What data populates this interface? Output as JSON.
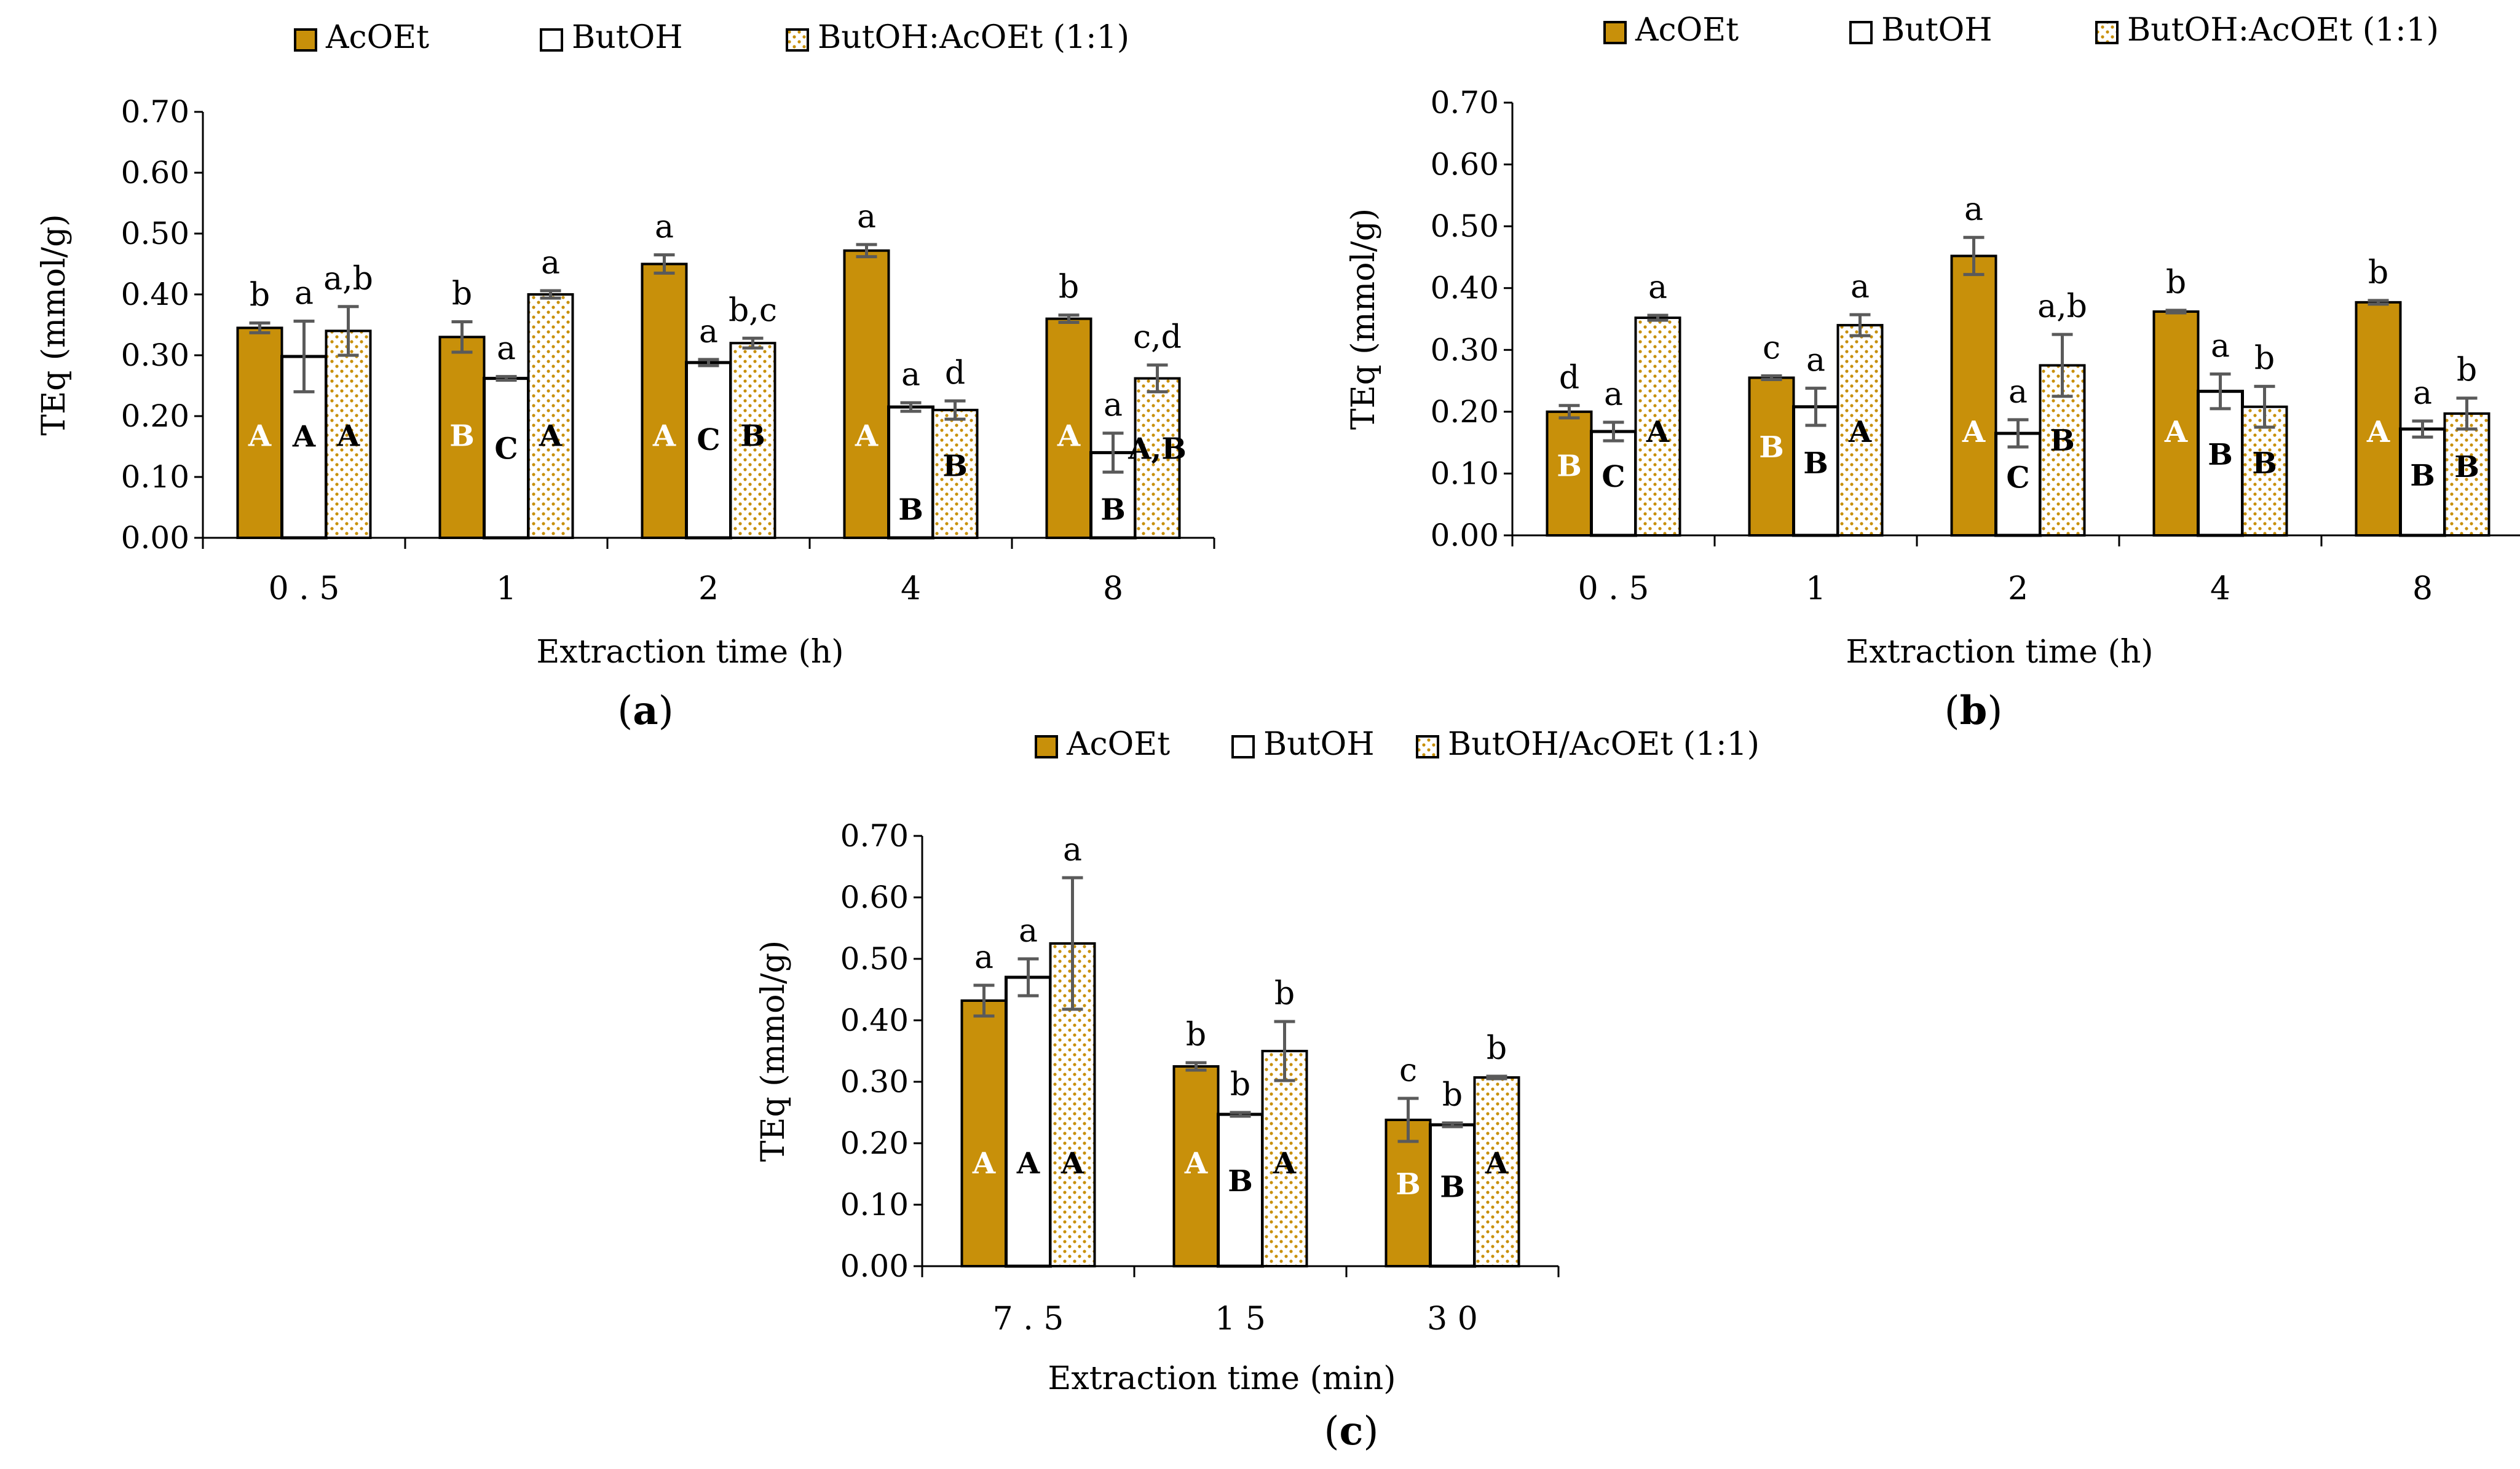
{
  "figure": {
    "colors": {
      "acoet": "#C8900A",
      "acoet_edge": "#000000",
      "butoh": "#ffffff",
      "mix_dot": "#C8900A",
      "error": "#5a5a5a",
      "axis": "#000000",
      "label_white": "#ffffff",
      "label_black": "#000000"
    }
  },
  "chart_data": [
    {
      "panel": "a",
      "caption_open": "(",
      "caption_letter": "a",
      "caption_close": ")",
      "type": "bar",
      "title": "",
      "xlabel": "Extraction time (h)",
      "ylabel": "TEq (mmol/g)",
      "ylim": [
        0,
        0.7
      ],
      "yticks": [
        "0.00",
        "0.10",
        "0.20",
        "0.30",
        "0.40",
        "0.50",
        "0.60",
        "0.70"
      ],
      "legend": [
        "AcOEt",
        "ButOH",
        "ButOH:AcOEt (1:1)"
      ],
      "legend_position": "top",
      "categories": [
        "0.5",
        "1",
        "2",
        "4",
        "8"
      ],
      "series": [
        {
          "name": "AcOEt",
          "values": [
            0.345,
            0.33,
            0.45,
            0.472,
            0.36
          ],
          "errors": [
            0.008,
            0.025,
            0.015,
            0.01,
            0.006
          ],
          "top_labels": [
            "b",
            "b",
            "a",
            "a",
            "b"
          ],
          "inner_labels": [
            "A",
            "B",
            "A",
            "A",
            "A"
          ]
        },
        {
          "name": "ButOH",
          "values": [
            0.298,
            0.262,
            0.288,
            0.215,
            0.14
          ],
          "errors": [
            0.058,
            0.003,
            0.005,
            0.007,
            0.032
          ],
          "top_labels": [
            "a",
            "a",
            "a",
            "a",
            "a"
          ],
          "inner_labels": [
            "A",
            "C",
            "C",
            "B",
            "B"
          ]
        },
        {
          "name": "ButOH:AcOEt (1:1)",
          "values": [
            0.34,
            0.4,
            0.32,
            0.21,
            0.262
          ],
          "errors": [
            0.04,
            0.006,
            0.008,
            0.015,
            0.022
          ],
          "top_labels": [
            "a,b",
            "a",
            "b,c",
            "d",
            "c,d"
          ],
          "inner_labels": [
            "A",
            "A",
            "B",
            "B",
            "A,B"
          ]
        }
      ]
    },
    {
      "panel": "b",
      "caption_open": "(",
      "caption_letter": "b",
      "caption_close": ")",
      "type": "bar",
      "title": "",
      "xlabel": "Extraction time (h)",
      "ylabel": "TEq (mmol/g)",
      "ylim": [
        0,
        0.7
      ],
      "yticks": [
        "0.00",
        "0.10",
        "0.20",
        "0.30",
        "0.40",
        "0.50",
        "0.60",
        "0.70"
      ],
      "legend": [
        "AcOEt",
        "ButOH",
        "ButOH:AcOEt (1:1)"
      ],
      "legend_position": "top",
      "categories": [
        "0.5",
        "1",
        "2",
        "4",
        "8"
      ],
      "series": [
        {
          "name": "AcOEt",
          "values": [
            0.2,
            0.255,
            0.452,
            0.362,
            0.377
          ],
          "errors": [
            0.01,
            0.003,
            0.03,
            0.002,
            0.003
          ],
          "top_labels": [
            "d",
            "c",
            "a",
            "b",
            "b"
          ],
          "inner_labels": [
            "B",
            "B",
            "A",
            "A",
            "A"
          ]
        },
        {
          "name": "ButOH",
          "values": [
            0.168,
            0.208,
            0.165,
            0.233,
            0.172
          ],
          "errors": [
            0.015,
            0.03,
            0.022,
            0.028,
            0.013
          ],
          "top_labels": [
            "a",
            "a",
            "a",
            "a",
            "a"
          ],
          "inner_labels": [
            "C",
            "B",
            "C",
            "B",
            "B"
          ]
        },
        {
          "name": "ButOH:AcOEt (1:1)",
          "values": [
            0.352,
            0.34,
            0.275,
            0.208,
            0.197
          ],
          "errors": [
            0.004,
            0.017,
            0.05,
            0.033,
            0.025
          ],
          "top_labels": [
            "a",
            "a",
            "a,b",
            "b",
            "b"
          ],
          "inner_labels": [
            "A",
            "A",
            "B",
            "B",
            "B"
          ]
        }
      ]
    },
    {
      "panel": "c",
      "caption_open": "(",
      "caption_letter": "c",
      "caption_close": ")",
      "type": "bar",
      "title": "",
      "xlabel": "Extraction time (min)",
      "ylabel": "TEq (mmol/g)",
      "ylim": [
        0,
        0.7
      ],
      "yticks": [
        "0.00",
        "0.10",
        "0.20",
        "0.30",
        "0.40",
        "0.50",
        "0.60",
        "0.70"
      ],
      "legend": [
        "AcOEt",
        "ButOH",
        "ButOH/AcOEt (1:1)"
      ],
      "legend_position": "top",
      "categories": [
        "7.5",
        "15",
        "30"
      ],
      "series": [
        {
          "name": "AcOEt",
          "values": [
            0.432,
            0.325,
            0.238
          ],
          "errors": [
            0.025,
            0.006,
            0.035
          ],
          "top_labels": [
            "a",
            "b",
            "c"
          ],
          "inner_labels": [
            "A",
            "A",
            "B"
          ]
        },
        {
          "name": "ButOH",
          "values": [
            0.47,
            0.247,
            0.23
          ],
          "errors": [
            0.03,
            0.003,
            0.003
          ],
          "top_labels": [
            "a",
            "b",
            "b"
          ],
          "inner_labels": [
            "A",
            "B",
            "B"
          ]
        },
        {
          "name": "ButOH/AcOEt (1:1)",
          "values": [
            0.525,
            0.35,
            0.307
          ],
          "errors": [
            0.107,
            0.048,
            0.002
          ],
          "top_labels": [
            "a",
            "b",
            "b"
          ],
          "inner_labels": [
            "A",
            "A",
            "A"
          ]
        }
      ]
    }
  ]
}
